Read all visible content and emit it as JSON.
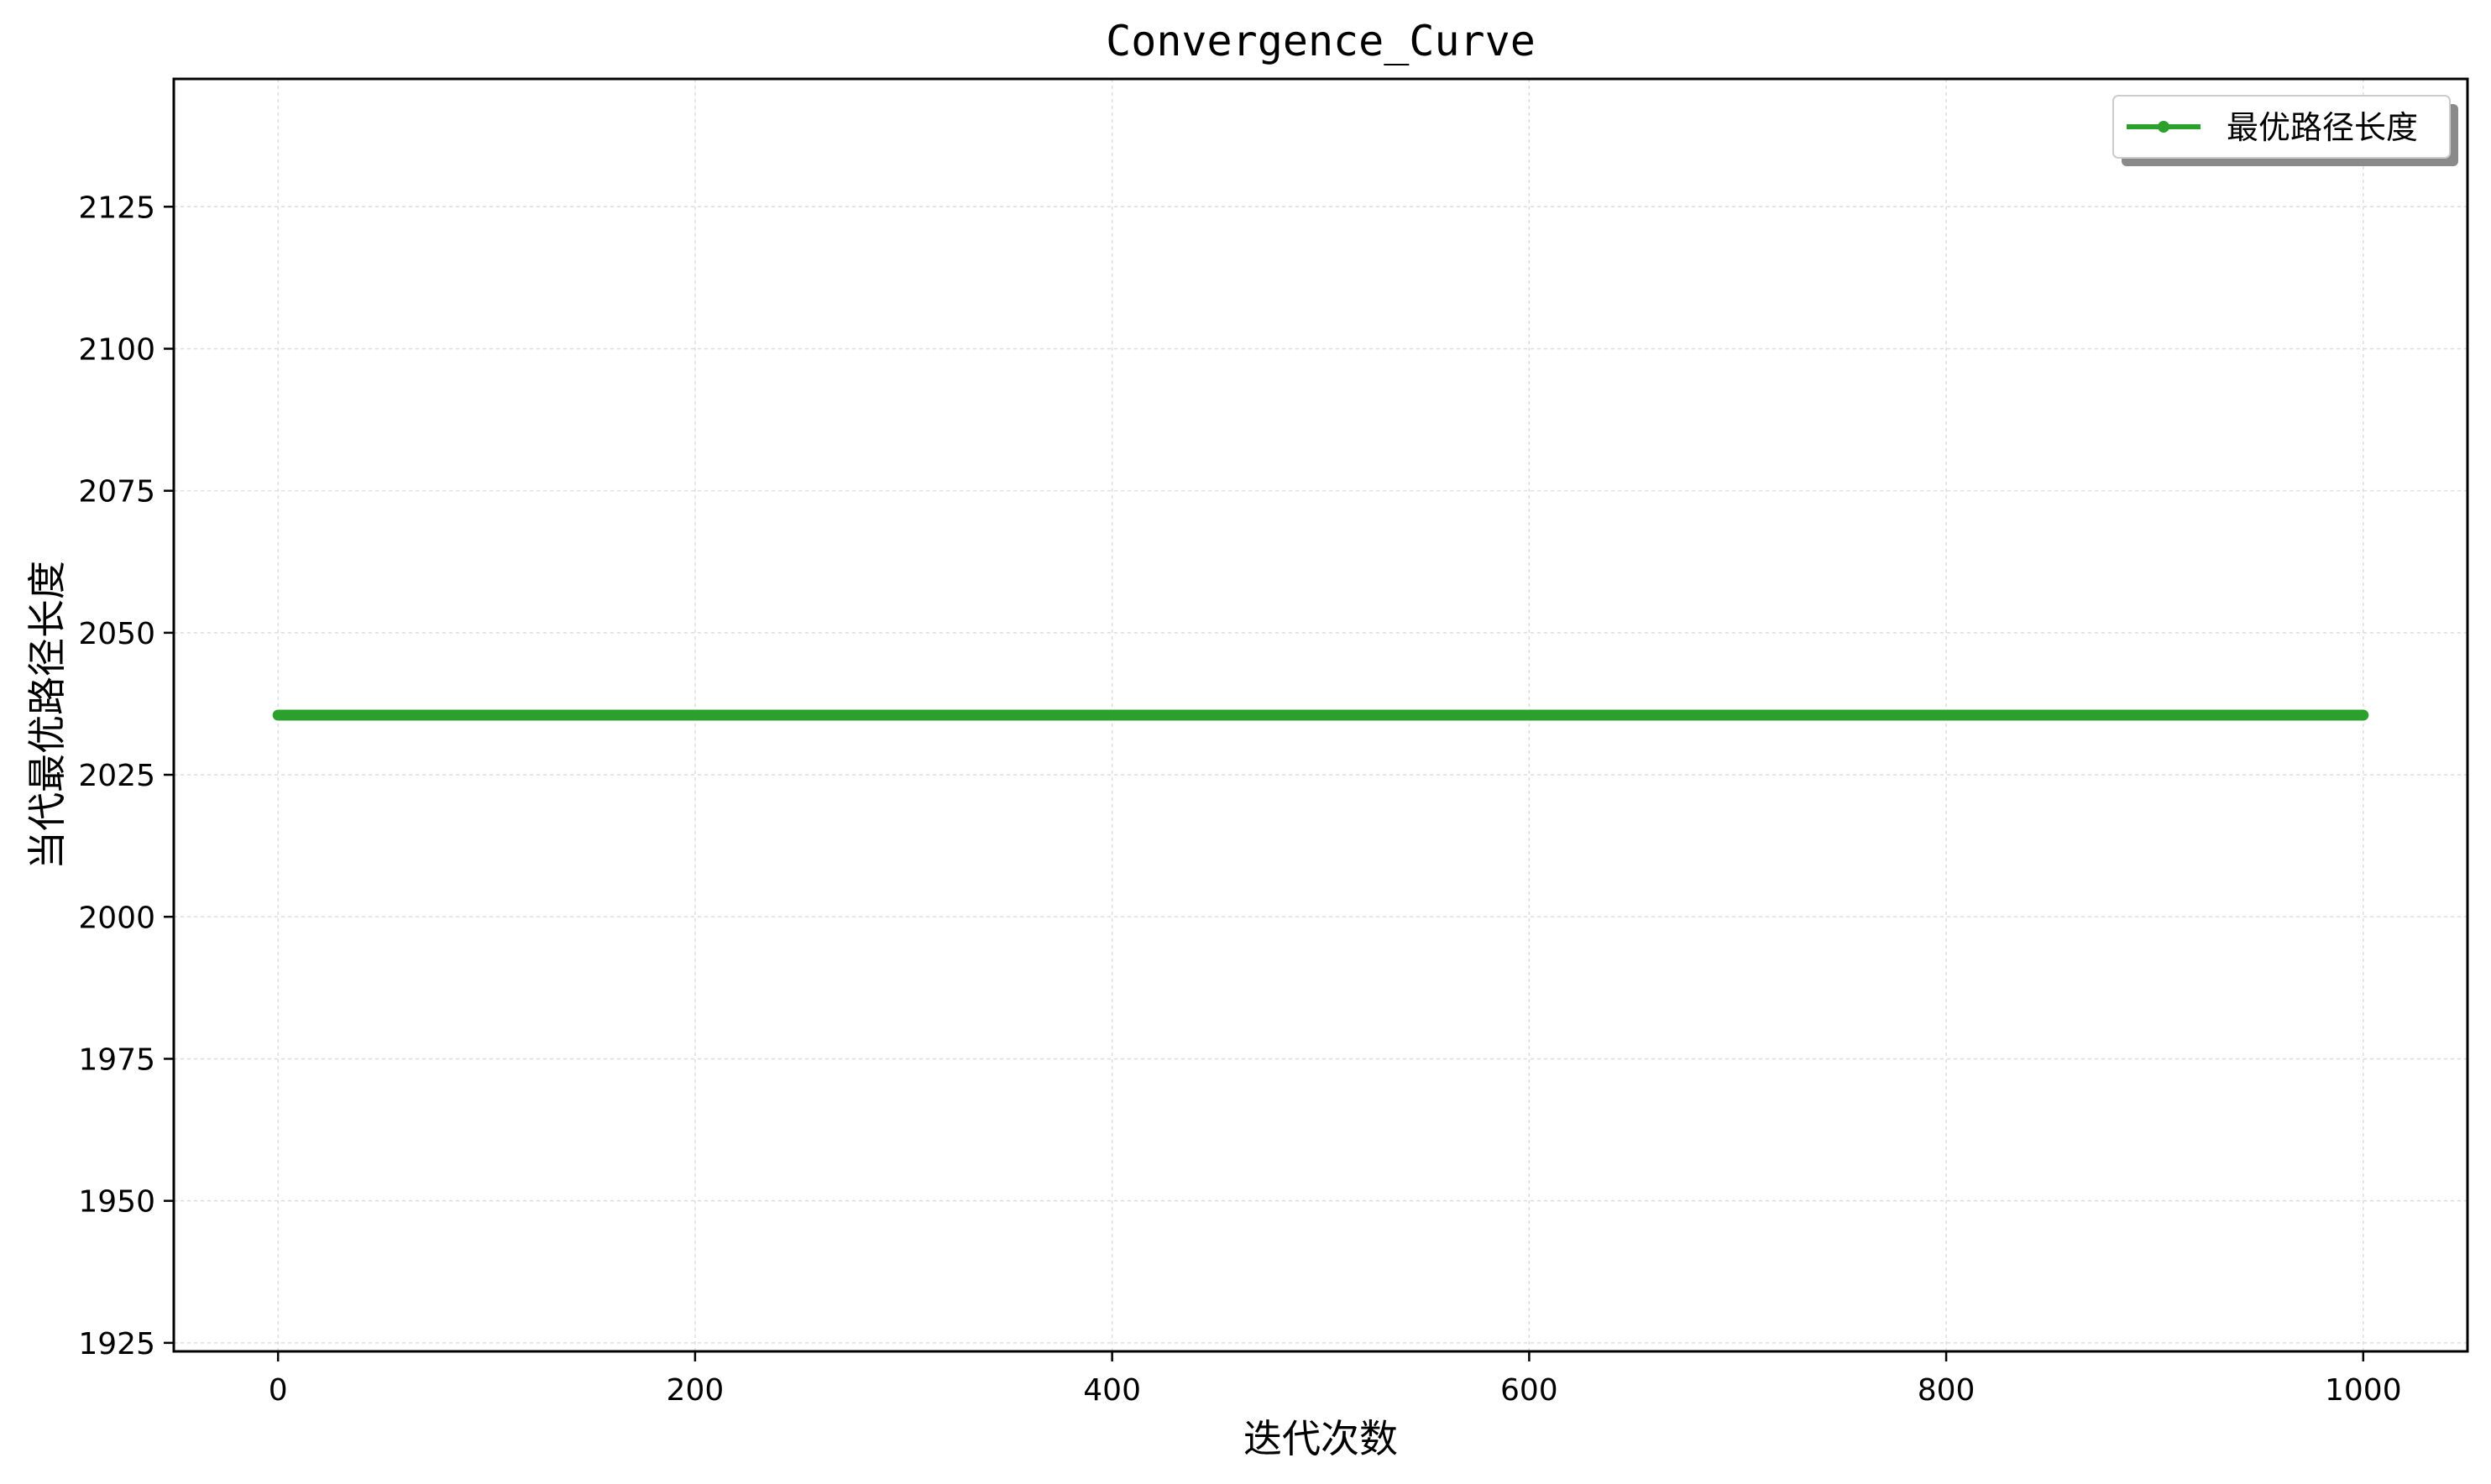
{
  "chart_data": {
    "type": "line",
    "title": "Convergence_Curve",
    "xlabel": "迭代次数",
    "ylabel": "当代最优路径长度",
    "xlim": [
      -50,
      1050
    ],
    "ylim": [
      1923.5,
      2147.5
    ],
    "x_ticks": [
      0,
      200,
      400,
      600,
      800,
      1000
    ],
    "y_ticks": [
      1925,
      1950,
      1975,
      2000,
      2025,
      2050,
      2075,
      2100,
      2125
    ],
    "grid": true,
    "legend_position": "top-right",
    "series": [
      {
        "name": "最优路径长度",
        "color": "#2ca02c",
        "x": [
          0,
          1000
        ],
        "y": [
          2035.5,
          2035.5
        ]
      }
    ]
  }
}
